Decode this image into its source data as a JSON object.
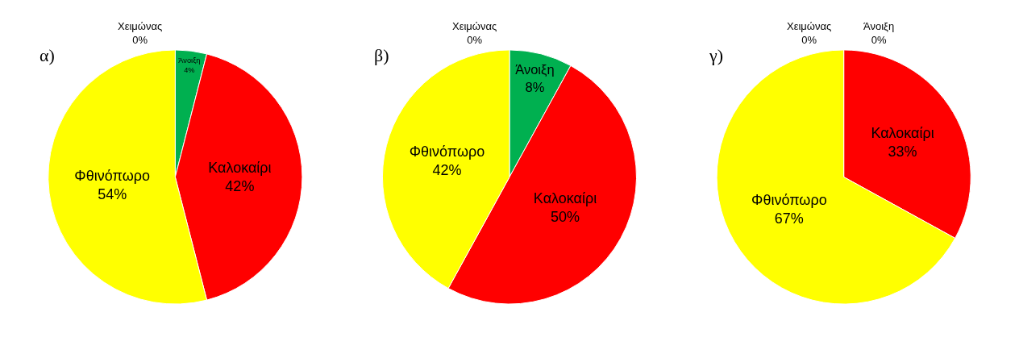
{
  "chart_data": [
    {
      "type": "pie",
      "title": "α)",
      "categories": [
        "Χειμώνας",
        "Άνοιξη",
        "Καλοκαίρι",
        "Φθινόπωρο"
      ],
      "values": [
        0,
        4,
        42,
        54
      ],
      "value_labels": [
        "0%",
        "4%",
        "42%",
        "54%"
      ],
      "colors": [
        "#4f81bd",
        "#00b050",
        "#ff0000",
        "#ffff00"
      ],
      "legend": false
    },
    {
      "type": "pie",
      "title": "β)",
      "categories": [
        "Χειμώνας",
        "Άνοιξη",
        "Καλοκαίρι",
        "Φθινόπωρο"
      ],
      "values": [
        0,
        8,
        50,
        42
      ],
      "value_labels": [
        "0%",
        "8%",
        "50%",
        "42%"
      ],
      "colors": [
        "#4f81bd",
        "#00b050",
        "#ff0000",
        "#ffff00"
      ],
      "legend": false
    },
    {
      "type": "pie",
      "title": "γ)",
      "categories": [
        "Χειμώνας",
        "Άνοιξη",
        "Καλοκαίρι",
        "Φθινόπωρο"
      ],
      "values": [
        0,
        0,
        33,
        67
      ],
      "value_labels": [
        "0%",
        "0%",
        "33%",
        "67%"
      ],
      "colors": [
        "#4f81bd",
        "#00b050",
        "#ff0000",
        "#ffff00"
      ],
      "legend": false
    }
  ]
}
